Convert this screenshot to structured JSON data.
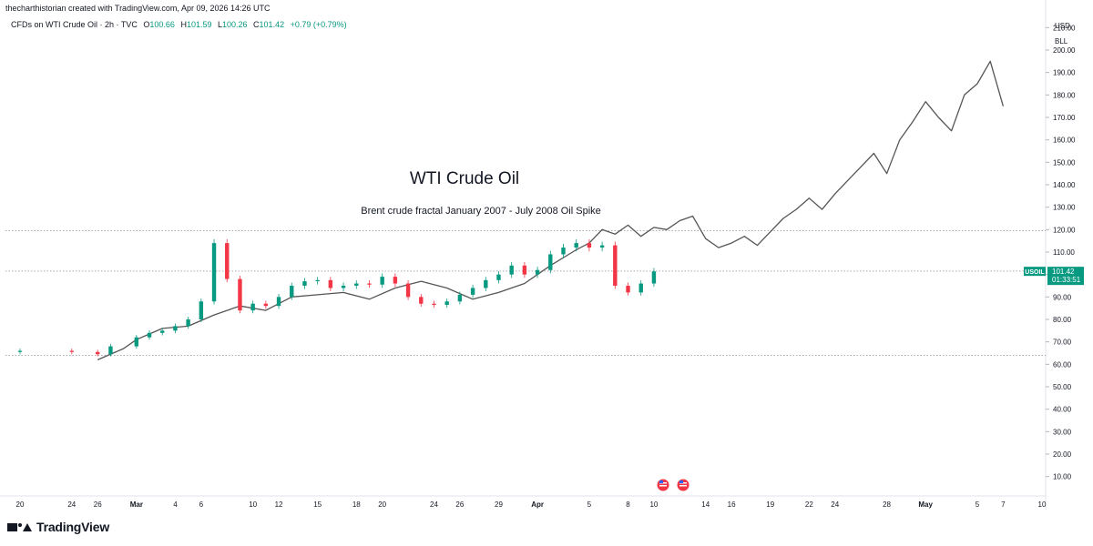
{
  "credit": "thecharthistorian created with TradingView.com, Apr 09, 2026 14:26 UTC",
  "legend": {
    "symbol": "CFDs on WTI Crude Oil · 2h · TVC",
    "open_label": "O",
    "open": "100.66",
    "high_label": "H",
    "high": "101.59",
    "low_label": "L",
    "low": "100.26",
    "close_label": "C",
    "close": "101.42",
    "change": "+0.79 (+0.79%)"
  },
  "currency": {
    "unit": "USD",
    "per": "BLL"
  },
  "brand": "TradingView",
  "colors": {
    "up": "#089981",
    "down": "#f23645",
    "overlay": "#555555",
    "badge": "#089981"
  },
  "chart_data": {
    "type": "candlestick",
    "title": "WTI Crude Oil",
    "subtitle": "Brent crude fractal January 2007 - July 2008 Oil Spike",
    "y_ticks": [
      "210.00",
      "200.00",
      "190.00",
      "180.00",
      "170.00",
      "160.00",
      "150.00",
      "140.00",
      "130.00",
      "120.00",
      "110.00",
      "100.00",
      "90.00",
      "80.00",
      "70.00",
      "60.00",
      "50.00",
      "40.00",
      "30.00",
      "20.00",
      "10.00"
    ],
    "y_tick_values": [
      210,
      200,
      190,
      180,
      170,
      160,
      150,
      140,
      130,
      120,
      110,
      100,
      90,
      80,
      70,
      60,
      50,
      40,
      30,
      20,
      10
    ],
    "ylim": [
      5,
      215
    ],
    "x_ticks": [
      {
        "label": "20",
        "date": "2026-02-20"
      },
      {
        "label": "24",
        "date": "2026-02-24"
      },
      {
        "label": "26",
        "date": "2026-02-26"
      },
      {
        "label": "Mar",
        "date": "2026-03-01",
        "bold": true
      },
      {
        "label": "4",
        "date": "2026-03-04"
      },
      {
        "label": "6",
        "date": "2026-03-06"
      },
      {
        "label": "10",
        "date": "2026-03-10"
      },
      {
        "label": "12",
        "date": "2026-03-12"
      },
      {
        "label": "15",
        "date": "2026-03-15"
      },
      {
        "label": "18",
        "date": "2026-03-18"
      },
      {
        "label": "20",
        "date": "2026-03-20"
      },
      {
        "label": "24",
        "date": "2026-03-24"
      },
      {
        "label": "26",
        "date": "2026-03-26"
      },
      {
        "label": "29",
        "date": "2026-03-29"
      },
      {
        "label": "Apr",
        "date": "2026-04-01",
        "bold": true
      },
      {
        "label": "5",
        "date": "2026-04-05"
      },
      {
        "label": "8",
        "date": "2026-04-08"
      },
      {
        "label": "10",
        "date": "2026-04-10"
      },
      {
        "label": "14",
        "date": "2026-04-14"
      },
      {
        "label": "16",
        "date": "2026-04-16"
      },
      {
        "label": "19",
        "date": "2026-04-19"
      },
      {
        "label": "22",
        "date": "2026-04-22"
      },
      {
        "label": "24",
        "date": "2026-04-24"
      },
      {
        "label": "28",
        "date": "2026-04-28"
      },
      {
        "label": "May",
        "date": "2026-05-01",
        "bold": true
      },
      {
        "label": "5",
        "date": "2026-05-05"
      },
      {
        "label": "7",
        "date": "2026-05-07"
      },
      {
        "label": "10",
        "date": "2026-05-10"
      }
    ],
    "price_series": {
      "name": "USOIL",
      "x": [
        "2026-02-17",
        "2026-02-20",
        "2026-02-24",
        "2026-02-26",
        "2026-02-27",
        "2026-03-01",
        "2026-03-02",
        "2026-03-03",
        "2026-03-04",
        "2026-03-05",
        "2026-03-06",
        "2026-03-07",
        "2026-03-08",
        "2026-03-09",
        "2026-03-10",
        "2026-03-11",
        "2026-03-12",
        "2026-03-13",
        "2026-03-14",
        "2026-03-15",
        "2026-03-16",
        "2026-03-17",
        "2026-03-18",
        "2026-03-19",
        "2026-03-20",
        "2026-03-21",
        "2026-03-22",
        "2026-03-23",
        "2026-03-24",
        "2026-03-25",
        "2026-03-26",
        "2026-03-27",
        "2026-03-28",
        "2026-03-29",
        "2026-03-30",
        "2026-03-31",
        "2026-04-01",
        "2026-04-02",
        "2026-04-03",
        "2026-04-04",
        "2026-04-05",
        "2026-04-06",
        "2026-04-07",
        "2026-04-08",
        "2026-04-09",
        "2026-04-10"
      ],
      "values": [
        65.5,
        66,
        65.5,
        64.5,
        68,
        72,
        74,
        75,
        77,
        80,
        88,
        114,
        98,
        84,
        87,
        86,
        90,
        95,
        97,
        97.5,
        94,
        95,
        96,
        95.5,
        99,
        96,
        90,
        87,
        86.5,
        88,
        91,
        94,
        97.5,
        100,
        104,
        100,
        102,
        109,
        112,
        114,
        112,
        113,
        95,
        92,
        96,
        101.4
      ]
    },
    "fractal_series": {
      "name": "",
      "x": [
        "2026-02-26",
        "2026-02-28",
        "2026-03-01",
        "2026-03-03",
        "2026-03-05",
        "2026-03-07",
        "2026-03-09",
        "2026-03-11",
        "2026-03-13",
        "2026-03-15",
        "2026-03-17",
        "2026-03-19",
        "2026-03-21",
        "2026-03-23",
        "2026-03-25",
        "2026-03-27",
        "2026-03-29",
        "2026-03-31",
        "2026-04-02",
        "2026-04-04",
        "2026-04-05",
        "2026-04-06",
        "2026-04-07",
        "2026-04-08",
        "2026-04-09",
        "2026-04-10",
        "2026-04-11",
        "2026-04-12",
        "2026-04-13",
        "2026-04-14",
        "2026-04-15",
        "2026-04-16",
        "2026-04-17",
        "2026-04-18",
        "2026-04-19",
        "2026-04-20",
        "2026-04-21",
        "2026-04-22",
        "2026-04-23",
        "2026-04-24",
        "2026-04-25",
        "2026-04-26",
        "2026-04-27",
        "2026-04-28",
        "2026-04-29",
        "2026-04-30",
        "2026-05-01",
        "2026-05-02",
        "2026-05-03",
        "2026-05-04",
        "2026-05-05",
        "2026-05-06",
        "2026-05-07"
      ],
      "values": [
        62,
        67,
        71,
        76,
        77,
        82,
        86,
        84,
        90,
        91,
        92,
        89,
        94,
        97,
        94,
        89,
        92,
        96,
        104,
        111,
        114,
        120,
        118,
        122,
        117,
        121,
        120,
        124,
        126,
        116,
        112,
        114,
        117,
        113,
        119,
        125,
        129,
        134,
        129,
        136,
        142,
        148,
        154,
        145,
        160,
        168,
        177,
        170,
        164,
        180,
        185,
        195,
        175
      ]
    },
    "last_price_label": "USOIL",
    "last_price": "101.42",
    "countdown": "01:33:51",
    "h_lines": [
      119.5,
      101.5,
      64
    ]
  }
}
